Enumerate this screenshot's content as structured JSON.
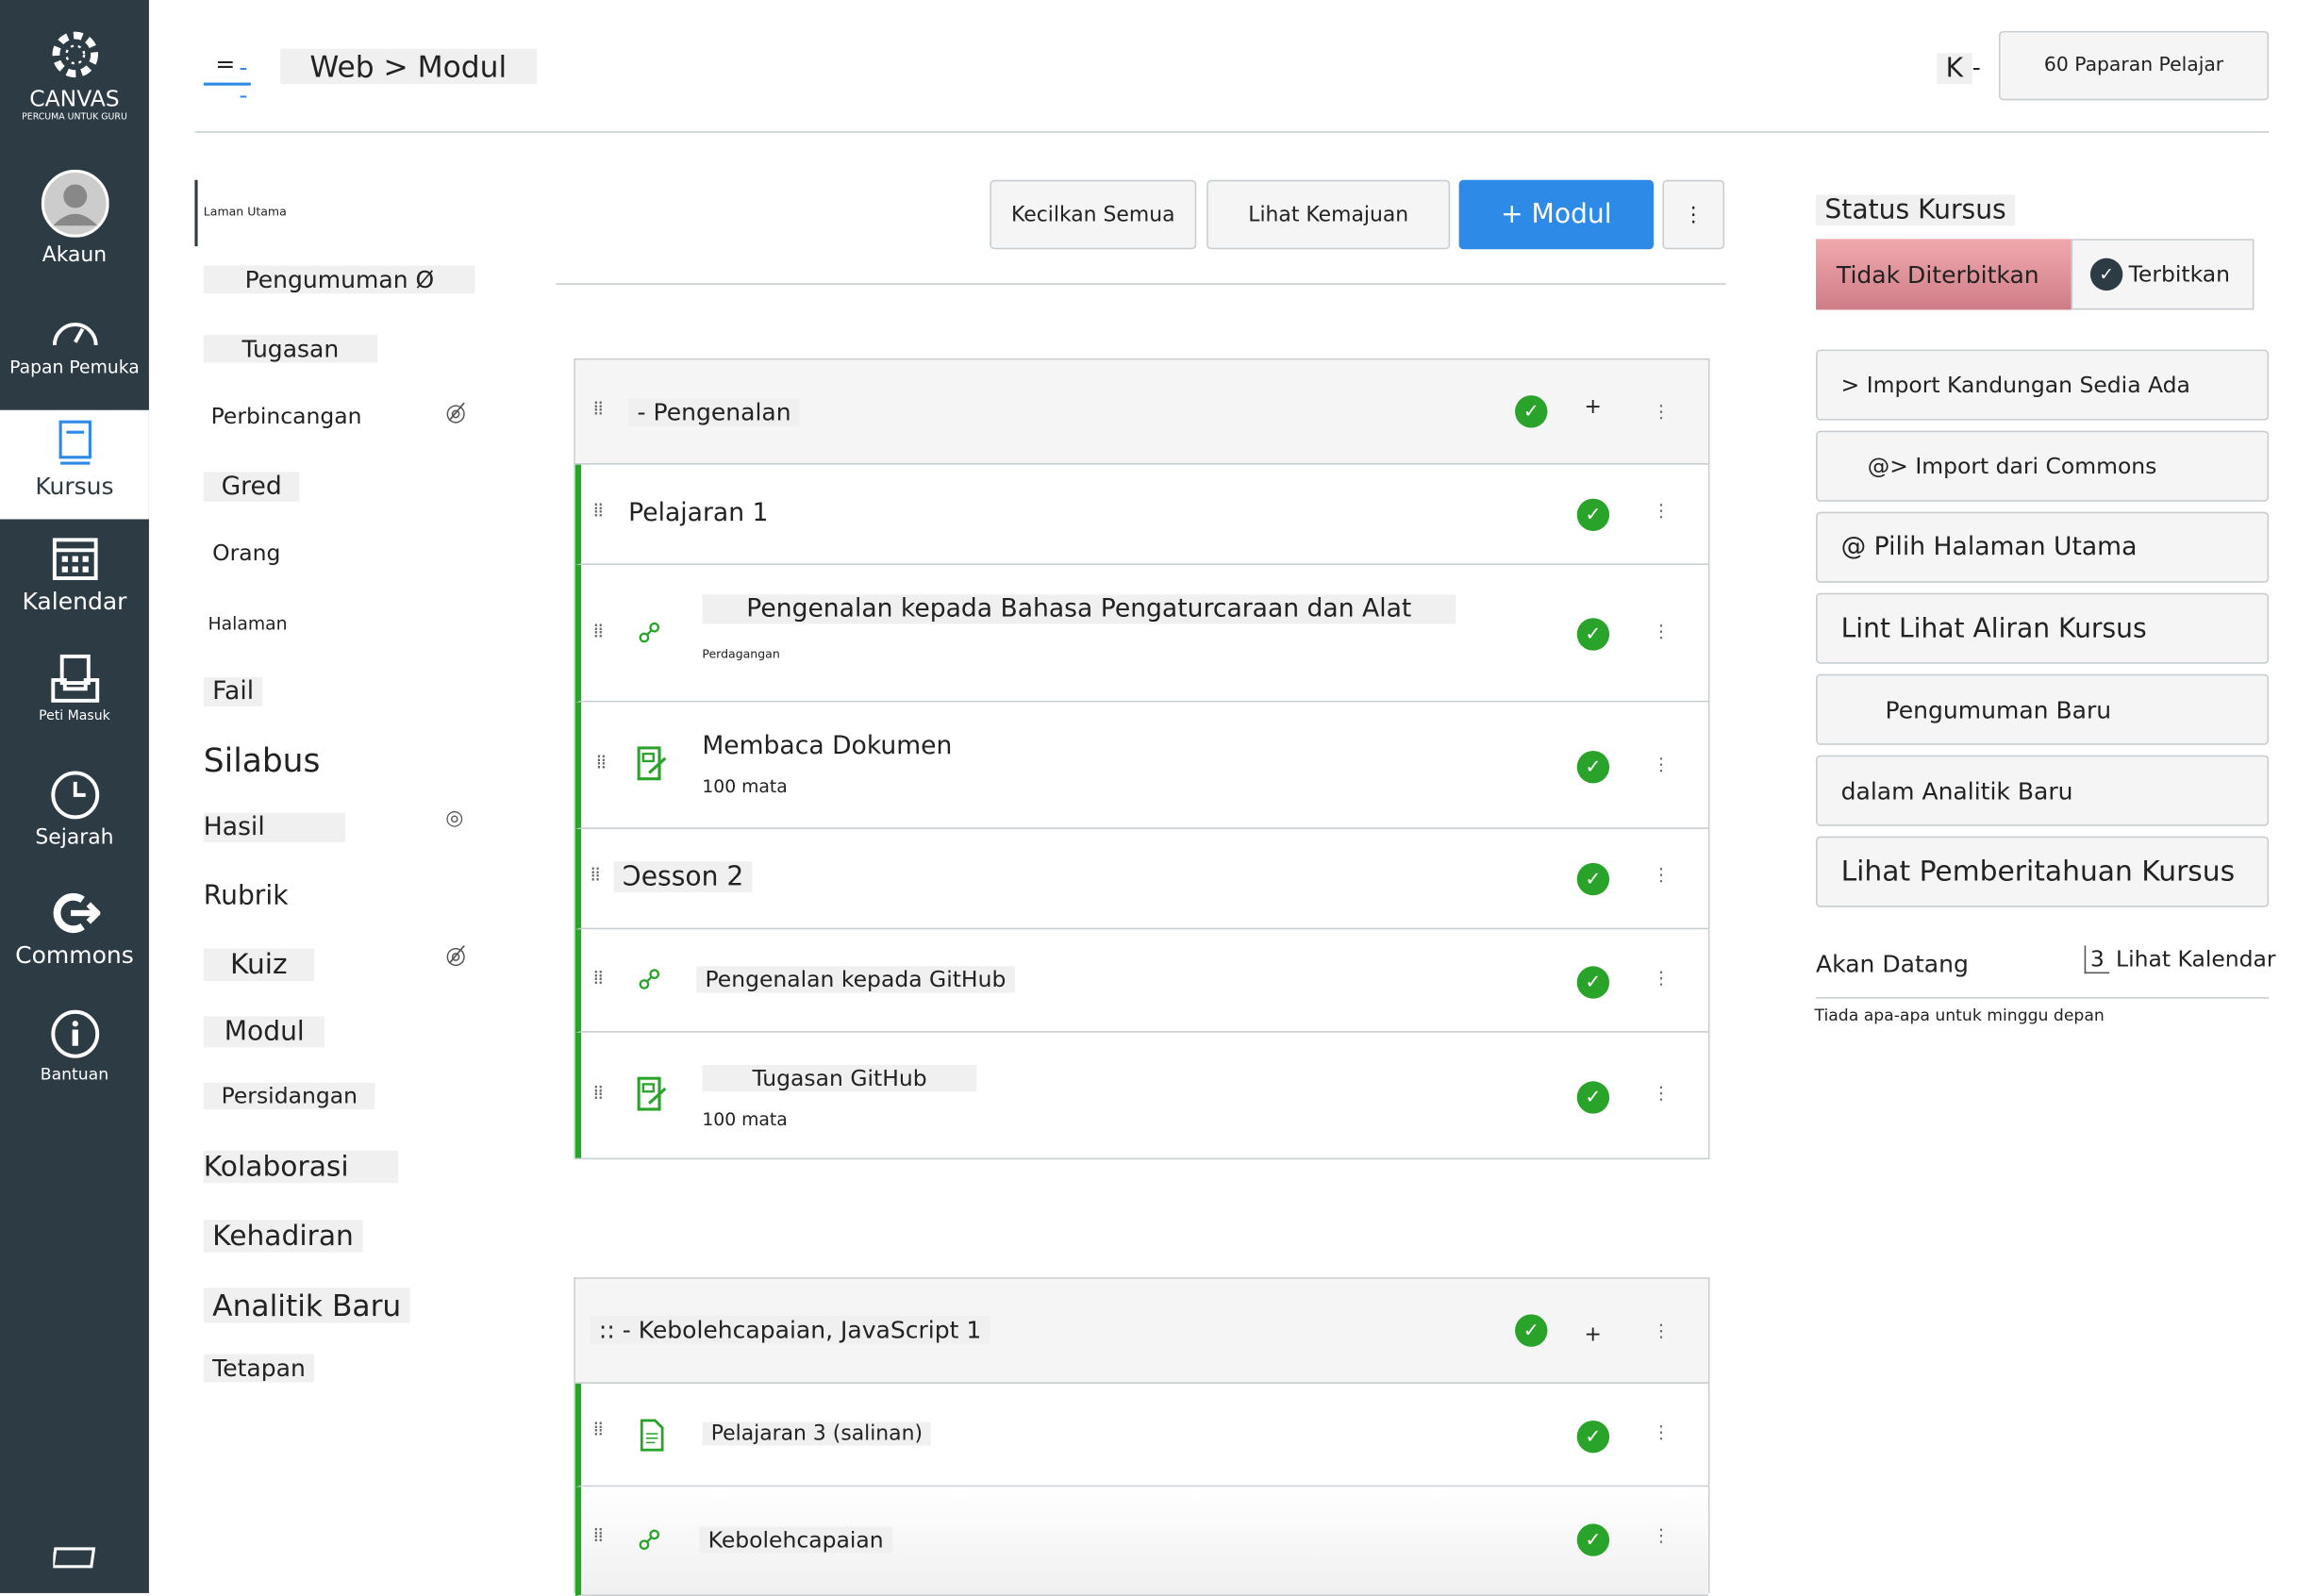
{
  "global_nav": {
    "logo_text": "CANVAS",
    "logo_sub": "PERCUMA UNTUK GURU",
    "items": [
      {
        "label": "Akaun",
        "icon": "avatar-icon"
      },
      {
        "label": "Papan Pemuka",
        "icon": "dashboard-icon"
      },
      {
        "label": "Kursus",
        "icon": "book-icon",
        "active": true
      },
      {
        "label": "Kalendar",
        "icon": "calendar-icon"
      },
      {
        "label": "Peti Masuk",
        "icon": "inbox-icon"
      },
      {
        "label": "Sejarah",
        "icon": "clock-icon"
      },
      {
        "label": "Commons",
        "icon": "commons-icon"
      },
      {
        "label": "Bantuan",
        "icon": "help-icon"
      }
    ]
  },
  "header": {
    "hamburger": "=",
    "breadcrumb": "Web > Modul",
    "k_label": "K",
    "student_view": "60 Paparan Pelajar"
  },
  "course_nav": [
    "Laman Utama",
    "Pengumuman Ø",
    "Tugasan",
    "Perbincangan",
    "Gred",
    "Orang",
    "Halaman",
    "Fail",
    "Silabus",
    "Hasil",
    "Rubrik",
    "Kuiz",
    "Modul",
    "Persidangan",
    "Kolaborasi",
    "Kehadiran",
    "Analitik Baru",
    "Tetapan"
  ],
  "toolbar": {
    "collapse_all": "Kecilkan Semua",
    "view_progress": "Lihat Kemajuan",
    "add_module": "+ Modul",
    "more": "⋮"
  },
  "modules": [
    {
      "title": "- Pengenalan",
      "items": [
        {
          "title": "Pelajaran 1",
          "type": "header"
        },
        {
          "title": "Pengenalan kepada Bahasa Pengaturcaraan dan Alat",
          "sub": "Perdagangan",
          "type": "link"
        },
        {
          "title": "Membaca Dokumen",
          "sub": "100 mata",
          "type": "assignment"
        },
        {
          "title": "Ͻesson 2",
          "type": "header"
        },
        {
          "title": "Pengenalan kepada GitHub",
          "type": "link"
        },
        {
          "title": "Tugasan GitHub",
          "sub": "100 mata",
          "type": "assignment"
        }
      ]
    },
    {
      "title": ":: - Kebolehcapaian, JavaScript 1",
      "items": [
        {
          "title": "Pelajaran 3 (salinan)",
          "type": "page"
        },
        {
          "title": "Kebolehcapaian",
          "type": "link"
        }
      ]
    }
  ],
  "sidebar": {
    "status_title": "Status Kursus",
    "unpublished": "Tidak Diterbitkan",
    "publish": "Terbitkan",
    "actions": [
      "> Import Kandungan Sedia Ada",
      "@> Import dari Commons",
      "@ Pilih Halaman Utama",
      "Lint Lihat Aliran Kursus",
      "Pengumuman Baru",
      "dalam Analitik Baru",
      "Lihat Pemberitahuan Kursus"
    ],
    "upcoming": "Akan Datang",
    "calendar_num": "3",
    "view_calendar": "Lihat Kalendar",
    "nothing": "Tiada apa-apa untuk minggu depan"
  },
  "colors": {
    "nav_bg": "#2d3b45",
    "primary": "#2d8ae6",
    "success": "#2aa32a",
    "unpublished": "#e49aa0"
  }
}
